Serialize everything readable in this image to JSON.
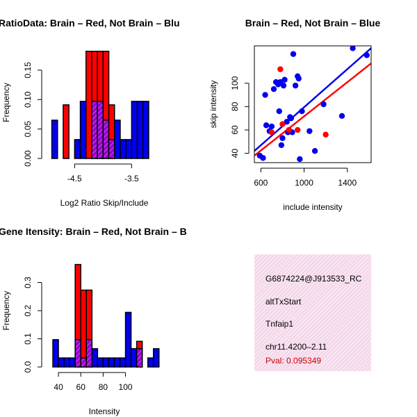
{
  "colors": {
    "red": "#ff0000",
    "blue": "#0000ee",
    "purple": "#9400d3",
    "hatch": "#cc55cc",
    "pval": "#cc0000"
  },
  "chart_data": [
    {
      "type": "bar",
      "title": "RatioData: Brain – Red, Not Brain – Blu",
      "xlabel": "Log2 Ratio Skip/Include",
      "ylabel": "Frequency",
      "xlim": [
        -4.98,
        -2.98
      ],
      "ylim": [
        0,
        0.19
      ],
      "xticks": [
        -4.5,
        -3.5
      ],
      "yticks": [
        0.0,
        0.05,
        0.1,
        0.15
      ],
      "bin_width": 0.1,
      "bin_start": -4.9,
      "series": [
        {
          "name": "Brain",
          "color": "red",
          "values": [
            0,
            0,
            0.091,
            0,
            0,
            0,
            0.182,
            0.182,
            0.182,
            0.182,
            0.091,
            0,
            0,
            0,
            0,
            0,
            0,
            0
          ]
        },
        {
          "name": "Not Brain",
          "color": "blue",
          "values": [
            0.065,
            0,
            0,
            0,
            0.032,
            0.097,
            0,
            0.097,
            0.097,
            0.065,
            0.032,
            0.065,
            0.032,
            0.032,
            0.097,
            0.097,
            0.097,
            0
          ]
        }
      ]
    },
    {
      "type": "scatter",
      "title": "Brain – Red, Not Brain – Blue",
      "xlabel": "include intensity",
      "ylabel": "skip intensity",
      "xlim": [
        540,
        1620
      ],
      "ylim": [
        32,
        132
      ],
      "xticks": [
        600,
        1000,
        1400
      ],
      "yticks": [
        40,
        60,
        80,
        100
      ],
      "series": [
        {
          "name": "Not Brain",
          "color": "blue",
          "x": [
            590,
            620,
            640,
            650,
            680,
            700,
            720,
            740,
            760,
            770,
            780,
            790,
            800,
            810,
            820,
            840,
            850,
            870,
            880,
            890,
            900,
            920,
            940,
            950,
            960,
            980,
            1050,
            1100,
            1180,
            1350,
            1450,
            1580
          ],
          "y": [
            38,
            36,
            90,
            64,
            59,
            63,
            95,
            101,
            99,
            76,
            101,
            47,
            53,
            98,
            103,
            67,
            58,
            71,
            70,
            58,
            125,
            98,
            106,
            104,
            35,
            76,
            59,
            42,
            82,
            72,
            130,
            124
          ],
          "fit": {
            "x": [
              540,
              1620
            ],
            "y": [
              42,
              130
            ]
          }
        },
        {
          "name": "Brain",
          "color": "red",
          "x": [
            700,
            780,
            800,
            860,
            940,
            1200
          ],
          "y": [
            58,
            112,
            65,
            60,
            60,
            56
          ],
          "fit": {
            "x": [
              540,
              1620
            ],
            "y": [
              38,
              117
            ]
          }
        }
      ]
    },
    {
      "type": "bar",
      "title": "Gene Itensity: Brain – Red, Not Brain – B",
      "xlabel": "Intensity",
      "ylabel": "Frequency",
      "xlim": [
        30,
        132
      ],
      "ylim": [
        0,
        0.4
      ],
      "xticks": [
        40,
        60,
        80,
        100
      ],
      "yticks": [
        0.0,
        0.1,
        0.2,
        0.3
      ],
      "bin_width": 5,
      "bin_start": 35,
      "series": [
        {
          "name": "Brain",
          "color": "red",
          "values": [
            0,
            0,
            0,
            0,
            0.364,
            0.273,
            0.273,
            0,
            0,
            0,
            0,
            0,
            0,
            0,
            0,
            0.091,
            0,
            0,
            0
          ]
        },
        {
          "name": "Not Brain",
          "color": "blue",
          "values": [
            0.097,
            0.032,
            0.032,
            0.032,
            0.097,
            0.032,
            0.097,
            0.065,
            0.032,
            0.032,
            0.032,
            0.032,
            0.032,
            0.194,
            0.065,
            0.065,
            0,
            0.032,
            0.065
          ]
        }
      ]
    }
  ],
  "info": {
    "line1": "G6874224@J913533_RC",
    "line2": "altTxStart",
    "line3": "Tnfaip1",
    "line4": "chr11.4200–2.11",
    "pval": "Pval: 0.095349"
  }
}
